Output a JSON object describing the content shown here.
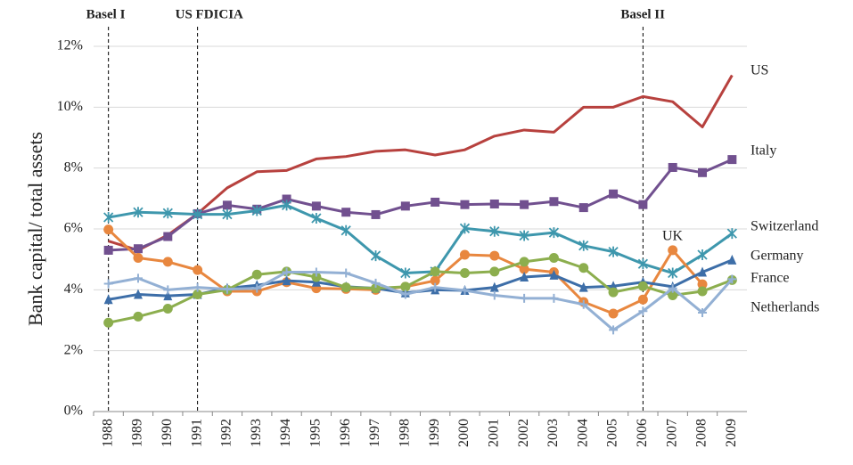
{
  "chart_data": {
    "type": "line",
    "y_label": "Bank capital/ total assets",
    "categories": [
      "1988",
      "1989",
      "1990",
      "1991",
      "1992",
      "1993",
      "1994",
      "1995",
      "1996",
      "1997",
      "1998",
      "1999",
      "2000",
      "2001",
      "2002",
      "2003",
      "2004",
      "2005",
      "2006",
      "2007",
      "2008",
      "2009"
    ],
    "ylim": [
      0,
      12
    ],
    "yticks": [
      {
        "value": 0,
        "label": "0%"
      },
      {
        "value": 2,
        "label": "2%"
      },
      {
        "value": 4,
        "label": "4%"
      },
      {
        "value": 6,
        "label": "6%"
      },
      {
        "value": 8,
        "label": "8%"
      },
      {
        "value": 10,
        "label": "10%"
      },
      {
        "value": 12,
        "label": "12%"
      }
    ],
    "grid": true,
    "annotations": [
      {
        "text": "Basel I",
        "x": "1988"
      },
      {
        "text": "US FDICIA",
        "x": "1991"
      },
      {
        "text": "Basel II",
        "x": "2006"
      }
    ],
    "series": [
      {
        "name": "US",
        "color": "#b7413e",
        "marker": "none",
        "values": [
          5.6,
          5.3,
          5.8,
          6.5,
          7.35,
          7.88,
          7.92,
          8.3,
          8.38,
          8.55,
          8.6,
          8.43,
          8.6,
          9.05,
          9.25,
          9.18,
          10.0,
          10.0,
          10.35,
          10.18,
          9.35,
          11.05
        ]
      },
      {
        "name": "Italy",
        "color": "#71508f",
        "marker": "square",
        "values": [
          5.3,
          5.35,
          5.75,
          6.5,
          6.78,
          6.65,
          6.98,
          6.75,
          6.55,
          6.47,
          6.75,
          6.88,
          6.8,
          6.82,
          6.8,
          6.9,
          6.7,
          7.15,
          6.8,
          8.02,
          7.85,
          8.28
        ]
      },
      {
        "name": "Switzerland",
        "color": "#3e97ad",
        "marker": "asterisk",
        "values": [
          6.38,
          6.55,
          6.52,
          6.48,
          6.48,
          6.6,
          6.78,
          6.35,
          5.95,
          5.12,
          4.55,
          4.6,
          6.02,
          5.92,
          5.78,
          5.88,
          5.45,
          5.25,
          4.85,
          4.55,
          5.15,
          5.85
        ]
      },
      {
        "name": "UK",
        "color": "#e8873f",
        "marker": "circle",
        "values": [
          5.98,
          5.05,
          4.92,
          4.65,
          3.95,
          3.95,
          4.25,
          4.05,
          4.03,
          4.0,
          4.1,
          4.3,
          5.15,
          5.12,
          4.68,
          4.58,
          3.6,
          3.22,
          3.68,
          5.3,
          4.18,
          null
        ]
      },
      {
        "name": "Germany",
        "color": "#3d6ea8",
        "marker": "triangle",
        "values": [
          3.68,
          3.85,
          3.8,
          3.85,
          4.05,
          4.15,
          4.3,
          4.25,
          4.1,
          4.05,
          3.9,
          4.0,
          3.98,
          4.08,
          4.42,
          4.48,
          4.08,
          4.12,
          4.25,
          4.1,
          4.58,
          4.98
        ]
      },
      {
        "name": "France",
        "color": "#8cae4e",
        "marker": "circle",
        "values": [
          2.92,
          3.12,
          3.38,
          3.85,
          4.0,
          4.5,
          4.6,
          4.42,
          4.08,
          4.05,
          4.1,
          4.6,
          4.55,
          4.6,
          4.92,
          5.05,
          4.72,
          3.92,
          4.12,
          3.82,
          3.95,
          4.32
        ]
      },
      {
        "name": "Netherlands",
        "color": "#93b0d4",
        "marker": "plus",
        "values": [
          4.2,
          4.38,
          4.0,
          4.08,
          4.02,
          4.05,
          4.58,
          4.58,
          4.55,
          4.22,
          3.85,
          4.08,
          3.98,
          3.82,
          3.72,
          3.72,
          3.52,
          2.68,
          3.3,
          4.05,
          3.25,
          4.35
        ]
      }
    ]
  }
}
